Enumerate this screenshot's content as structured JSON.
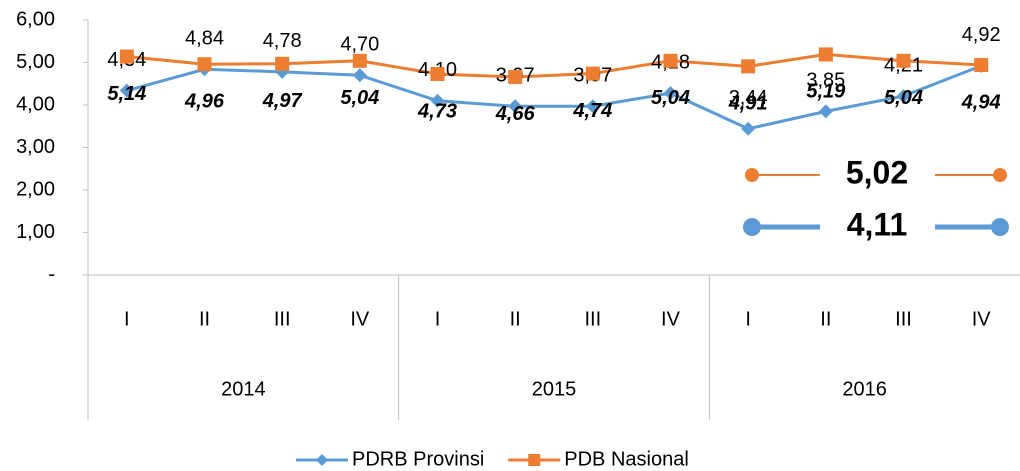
{
  "chart_data": {
    "type": "line",
    "categories": [
      "I",
      "II",
      "III",
      "IV",
      "I",
      "II",
      "III",
      "IV",
      "I",
      "II",
      "III",
      "IV"
    ],
    "groups": [
      "2014",
      "2015",
      "2016"
    ],
    "ylim": [
      0,
      6
    ],
    "yticks": [
      {
        "value": 0,
        "label": "-"
      },
      {
        "value": 1,
        "label": "1,00"
      },
      {
        "value": 2,
        "label": "2,00"
      },
      {
        "value": 3,
        "label": "3,00"
      },
      {
        "value": 4,
        "label": "4,00"
      },
      {
        "value": 5,
        "label": "5,00"
      },
      {
        "value": 6,
        "label": "6,00"
      }
    ],
    "series": [
      {
        "name": "PDRB Provinsi",
        "color": "#5b9bd5",
        "marker": "diamond",
        "values": [
          4.34,
          4.84,
          4.78,
          4.7,
          4.1,
          3.97,
          3.97,
          4.28,
          3.44,
          3.85,
          4.21,
          4.92
        ],
        "value_labels": [
          "4,34",
          "4,84",
          "4,78",
          "4,70",
          "4,10",
          "3,97",
          "3,97",
          "4,28",
          "3,44",
          "3,85",
          "4,21",
          "4,92"
        ]
      },
      {
        "name": "PDB Nasional",
        "color": "#ed7d31",
        "marker": "square",
        "values": [
          5.14,
          4.96,
          4.97,
          5.04,
          4.73,
          4.66,
          4.74,
          5.04,
          4.91,
          5.19,
          5.04,
          4.94
        ],
        "value_labels": [
          "5,14",
          "4,96",
          "4,97",
          "5,04",
          "4,73",
          "4,66",
          "4,74",
          "5,04",
          "4,91",
          "5,19",
          "5,04",
          "4,94"
        ]
      }
    ],
    "annotations": [
      {
        "text": "5,02",
        "color": "#ed7d31"
      },
      {
        "text": "4,11",
        "color": "#5b9bd5"
      }
    ]
  }
}
